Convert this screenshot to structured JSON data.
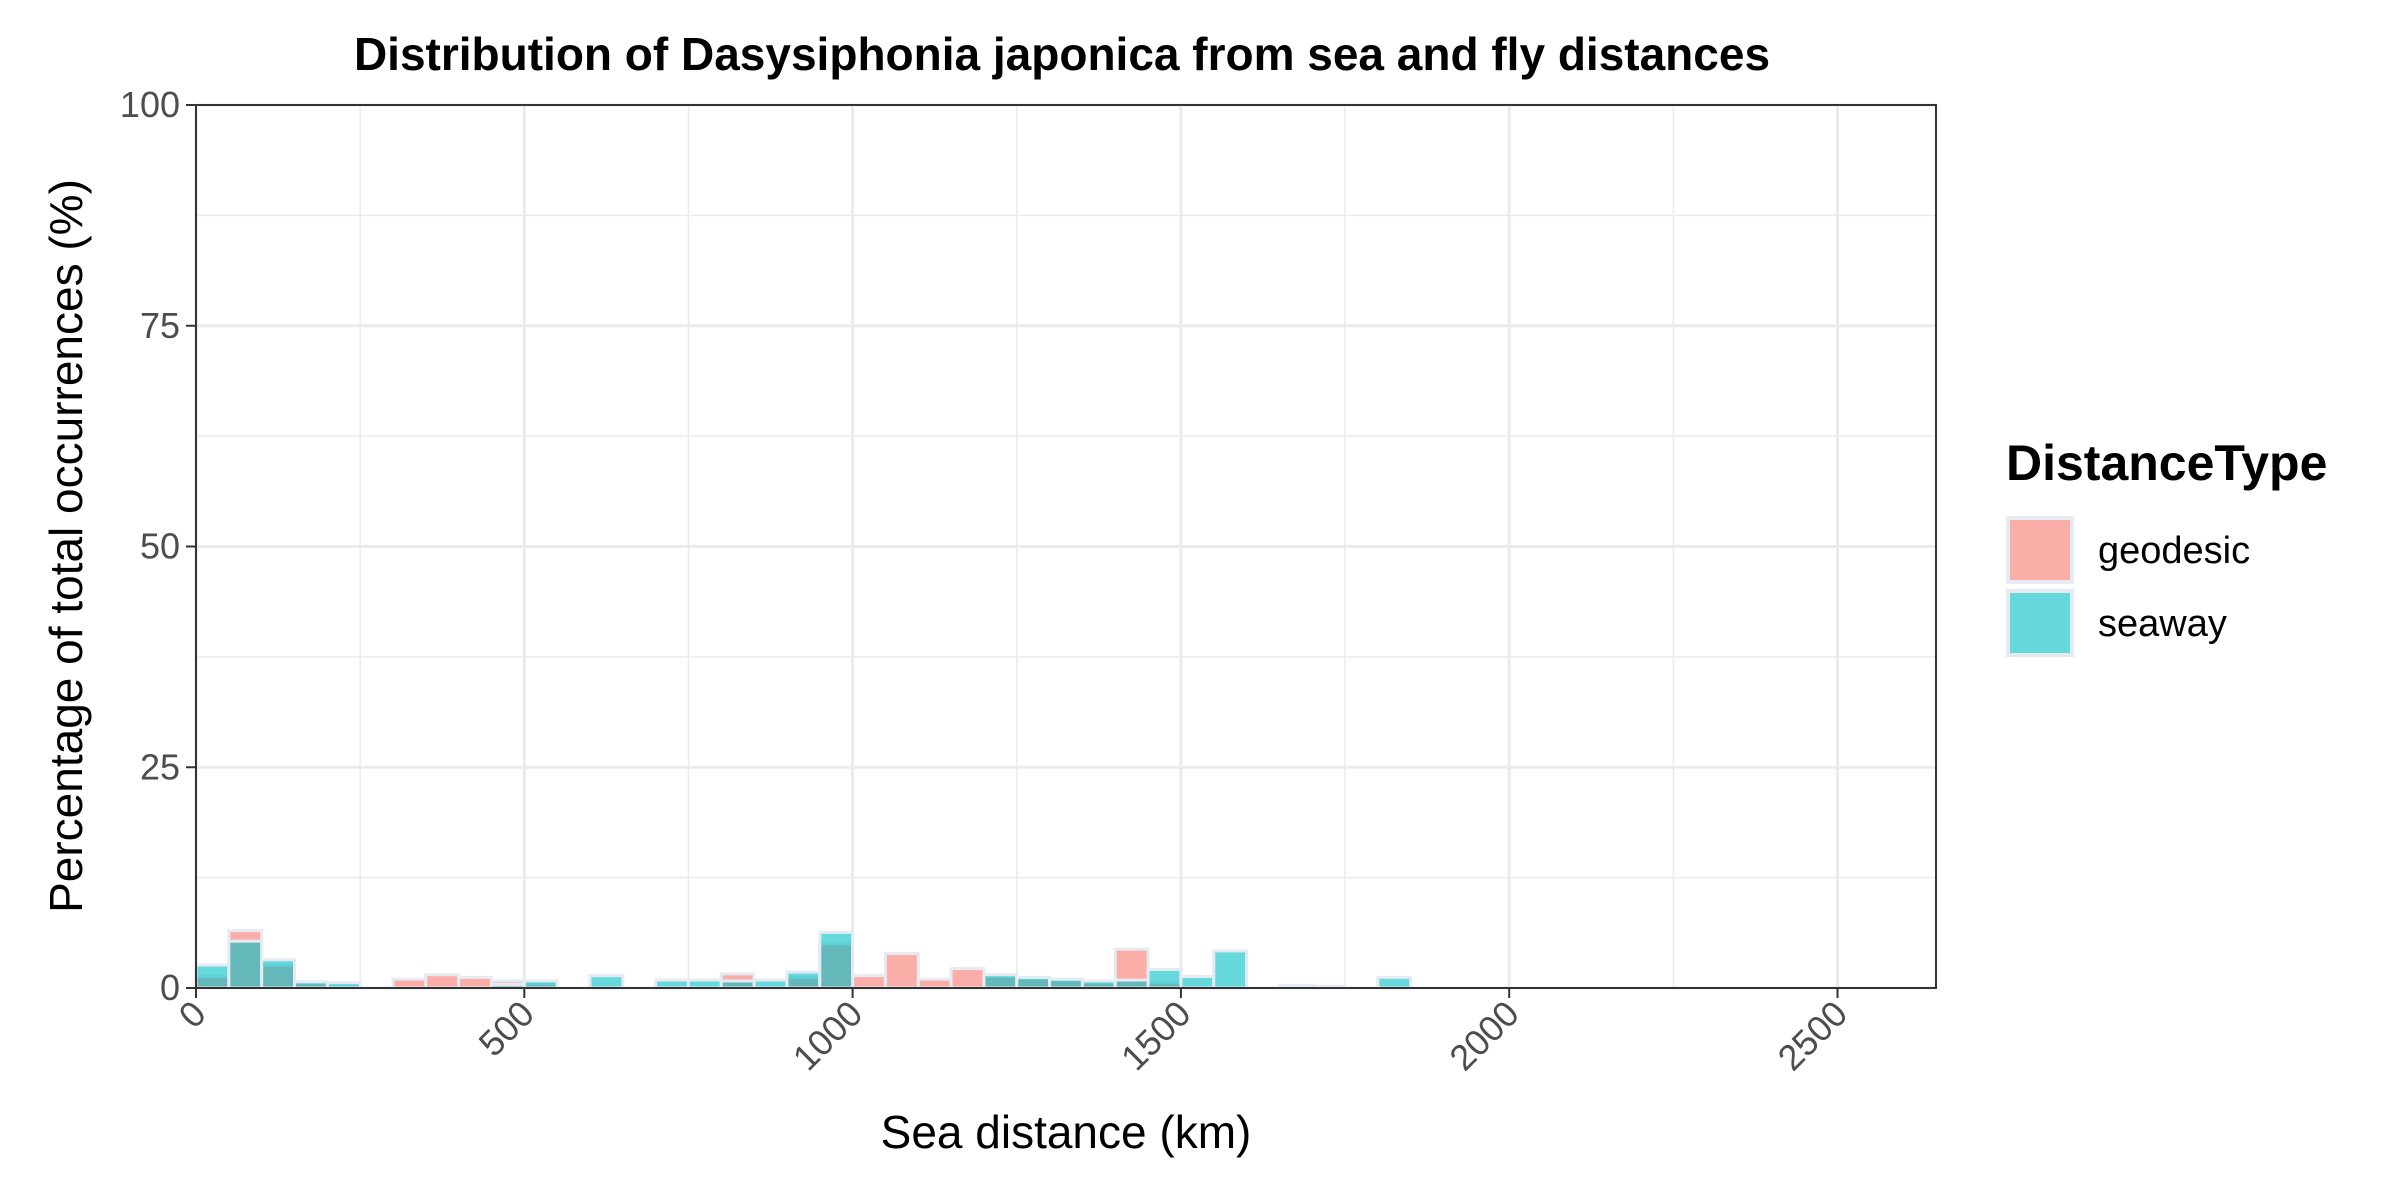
{
  "chart_data": {
    "type": "bar",
    "title": "Distribution of Dasysiphonia japonica from sea and fly distances",
    "xlabel": "Sea distance (km)",
    "ylabel": "Percentage of total occurrences (%)",
    "xlim": [
      0,
      2650
    ],
    "ylim": [
      0,
      100
    ],
    "x_ticks": [
      0,
      500,
      1000,
      1500,
      2000,
      2500
    ],
    "x_tick_labels": [
      "0",
      "500",
      "1000",
      "1500",
      "2000",
      "2500"
    ],
    "y_ticks": [
      0,
      25,
      50,
      75,
      100
    ],
    "y_tick_labels": [
      "0",
      "25",
      "50",
      "75",
      "100"
    ],
    "grid": true,
    "bin_width": 50,
    "legend": {
      "title": "DistanceType",
      "position": "right"
    },
    "series": [
      {
        "name": "geodesic",
        "color": "#F8766D",
        "bins": [
          {
            "x": 0,
            "y": 1.3
          },
          {
            "x": 50,
            "y": 6.5
          },
          {
            "x": 100,
            "y": 2.6
          },
          {
            "x": 150,
            "y": 0.6
          },
          {
            "x": 200,
            "y": 0.3
          },
          {
            "x": 300,
            "y": 1.0
          },
          {
            "x": 350,
            "y": 1.5
          },
          {
            "x": 400,
            "y": 1.2
          },
          {
            "x": 450,
            "y": 0.8
          },
          {
            "x": 500,
            "y": 0.5
          },
          {
            "x": 800,
            "y": 1.6
          },
          {
            "x": 900,
            "y": 1.2
          },
          {
            "x": 950,
            "y": 5.0
          },
          {
            "x": 1000,
            "y": 1.4
          },
          {
            "x": 1050,
            "y": 3.9
          },
          {
            "x": 1100,
            "y": 1.0
          },
          {
            "x": 1150,
            "y": 2.2
          },
          {
            "x": 1200,
            "y": 1.3
          },
          {
            "x": 1250,
            "y": 1.1
          },
          {
            "x": 1300,
            "y": 0.9
          },
          {
            "x": 1350,
            "y": 0.6
          },
          {
            "x": 1400,
            "y": 4.4
          },
          {
            "x": 1450,
            "y": 0.6
          }
        ]
      },
      {
        "name": "seaway",
        "color": "#00BFC4",
        "bins": [
          {
            "x": 0,
            "y": 2.6
          },
          {
            "x": 50,
            "y": 5.3
          },
          {
            "x": 100,
            "y": 3.2
          },
          {
            "x": 150,
            "y": 0.7
          },
          {
            "x": 200,
            "y": 0.6
          },
          {
            "x": 450,
            "y": 0.4
          },
          {
            "x": 500,
            "y": 0.8
          },
          {
            "x": 600,
            "y": 1.4
          },
          {
            "x": 700,
            "y": 0.9
          },
          {
            "x": 750,
            "y": 0.9
          },
          {
            "x": 800,
            "y": 0.8
          },
          {
            "x": 850,
            "y": 0.9
          },
          {
            "x": 900,
            "y": 1.8
          },
          {
            "x": 950,
            "y": 6.3
          },
          {
            "x": 1200,
            "y": 1.5
          },
          {
            "x": 1250,
            "y": 1.2
          },
          {
            "x": 1300,
            "y": 1.0
          },
          {
            "x": 1350,
            "y": 0.8
          },
          {
            "x": 1400,
            "y": 0.9
          },
          {
            "x": 1450,
            "y": 2.1
          },
          {
            "x": 1500,
            "y": 1.3
          },
          {
            "x": 1550,
            "y": 4.2
          },
          {
            "x": 1650,
            "y": 0.3
          },
          {
            "x": 1700,
            "y": 0.2
          },
          {
            "x": 1800,
            "y": 1.2
          }
        ]
      }
    ]
  }
}
